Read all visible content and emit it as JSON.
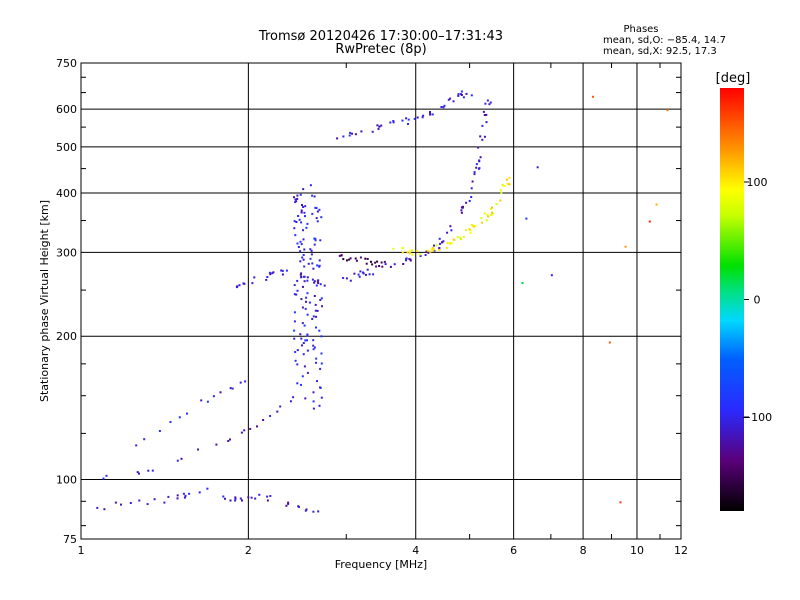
{
  "chart_data": {
    "type": "scatter",
    "title": "Tromsø 20120426 17:30:00–17:31:43",
    "subtitle": "RwPretec (8p)",
    "xlabel": "Frequency [MHz]",
    "ylabel": "Stationary phase Virtual Height [km]",
    "x_scale": "log",
    "y_scale": "log",
    "xlim": [
      1,
      12
    ],
    "ylim": [
      75,
      750
    ],
    "grid": true,
    "x_ticks": [
      1,
      2,
      4,
      6,
      8,
      10,
      12
    ],
    "x_tick_labels": [
      "1",
      "2",
      "4",
      "6",
      "8",
      "10",
      "12"
    ],
    "y_ticks": [
      75,
      100,
      200,
      300,
      400,
      500,
      600,
      750
    ],
    "y_tick_labels": [
      "75",
      "100",
      "200",
      "300",
      "400",
      "500",
      "600",
      "750"
    ],
    "phases_legend": {
      "heading": "Phases",
      "line1": "mean, sd,O: −85.4, 14.7",
      "line2": "mean, sd,X:  92.5, 17.3"
    },
    "colorbar": {
      "label": "[deg]",
      "range": [
        -180,
        180
      ],
      "ticks": [
        100,
        0,
        -100
      ],
      "tick_labels": [
        "100",
        "0",
        "−100"
      ]
    },
    "traces": [
      {
        "name_hint": "o-low",
        "phase": -110,
        "density": 18,
        "points": [
          [
            1.0,
            100
          ],
          [
            1.15,
            102
          ],
          [
            1.3,
            105
          ],
          [
            1.45,
            110
          ],
          [
            1.6,
            115
          ],
          [
            1.75,
            120
          ],
          [
            1.9,
            125
          ],
          [
            2.0,
            128
          ],
          [
            2.1,
            132
          ],
          [
            2.2,
            138
          ],
          [
            2.3,
            143
          ],
          [
            2.4,
            148
          ]
        ]
      },
      {
        "name_hint": "o-upper",
        "phase": -105,
        "density": 14,
        "points": [
          [
            1.2,
            118
          ],
          [
            1.35,
            126
          ],
          [
            1.5,
            135
          ],
          [
            1.6,
            142
          ],
          [
            1.7,
            150
          ],
          [
            1.8,
            154
          ],
          [
            1.9,
            158
          ],
          [
            2.0,
            162
          ]
        ]
      },
      {
        "name_hint": "e-cloud",
        "phase": -100,
        "density": 140,
        "points": [
          [
            2.55,
            140
          ],
          [
            2.55,
            200
          ],
          [
            2.55,
            260
          ],
          [
            2.55,
            330
          ],
          [
            2.55,
            390
          ]
        ]
      },
      {
        "name_hint": "es-trace",
        "phase": -110,
        "density": 30,
        "points": [
          [
            1.85,
            255
          ],
          [
            2.0,
            262
          ],
          [
            2.2,
            270
          ],
          [
            2.4,
            275
          ],
          [
            2.6,
            265
          ],
          [
            2.75,
            258
          ]
        ]
      },
      {
        "name_hint": "f-o",
        "phase": -110,
        "density": 70,
        "points": [
          [
            2.9,
            262
          ],
          [
            3.2,
            272
          ],
          [
            3.6,
            283
          ],
          [
            4.0,
            293
          ],
          [
            4.4,
            312
          ],
          [
            4.7,
            345
          ],
          [
            5.0,
            400
          ],
          [
            5.15,
            460
          ],
          [
            5.3,
            560
          ],
          [
            5.4,
            640
          ]
        ]
      },
      {
        "name_hint": "f-x",
        "phase": 95,
        "density": 60,
        "points": [
          [
            3.6,
            305
          ],
          [
            4.0,
            302
          ],
          [
            4.5,
            310
          ],
          [
            4.9,
            330
          ],
          [
            5.3,
            355
          ],
          [
            5.6,
            385
          ],
          [
            5.85,
            430
          ]
        ]
      },
      {
        "name_hint": "f-o-dark",
        "phase": -150,
        "density": 20,
        "points": [
          [
            2.9,
            295
          ],
          [
            3.1,
            292
          ],
          [
            3.3,
            288
          ],
          [
            3.5,
            285
          ]
        ]
      },
      {
        "name_hint": "spread-f-top",
        "phase": -105,
        "density": 40,
        "points": [
          [
            2.85,
            525
          ],
          [
            3.2,
            540
          ],
          [
            3.6,
            560
          ],
          [
            4.0,
            575
          ],
          [
            4.4,
            610
          ],
          [
            4.75,
            645
          ],
          [
            5.0,
            650
          ]
        ]
      },
      {
        "name_hint": "low-scatter",
        "phase": -110,
        "density": 45,
        "points": [
          [
            1.05,
            88
          ],
          [
            1.3,
            90
          ],
          [
            1.5,
            92
          ],
          [
            1.7,
            95
          ],
          [
            1.9,
            90
          ],
          [
            2.1,
            93
          ],
          [
            2.4,
            88
          ],
          [
            2.7,
            87
          ]
        ]
      }
    ],
    "isolated_points": [
      [
        [
          6.3,
          355
        ],
        [
          -90
        ],
        [
          9.5,
          310
        ],
        [
          130
        ],
        [
          8.3,
          640
        ],
        [
          150
        ],
        [
          6.6,
          455
        ],
        [
          -110
        ],
        [
          10.5,
          350
        ],
        [
          170
        ],
        [
          11.3,
          600
        ],
        [
          140
        ],
        [
          9.3,
          90
        ],
        [
          160
        ],
        [
          10.8,
          380
        ],
        [
          120
        ],
        [
          7.0,
          270
        ],
        [
          -100
        ],
        [
          6.2,
          260
        ],
        [
          20
        ],
        [
          8.9,
          195
        ],
        [
          150
        ]
      ]
    ]
  }
}
